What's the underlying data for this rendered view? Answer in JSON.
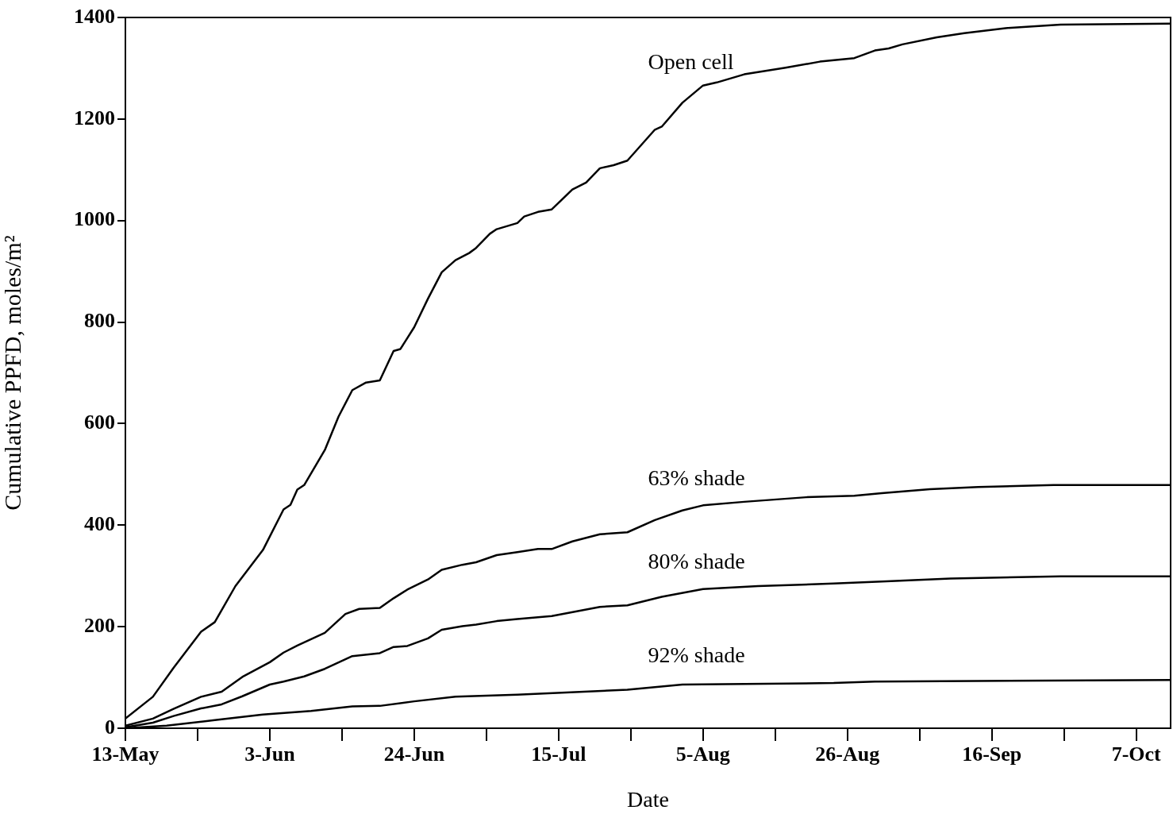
{
  "chart_data": {
    "type": "line",
    "xlabel": "Date",
    "ylabel": "Cumulative PPFD, moles/m²",
    "xlim": [
      "--05-13",
      "--10-12"
    ],
    "xticks": [
      {
        "value": "--05-13",
        "label": "13-May"
      },
      {
        "value": "--05-23T12:00",
        "label": null
      },
      {
        "value": "--06-03",
        "label": "3-Jun"
      },
      {
        "value": "--06-13T12:00",
        "label": null
      },
      {
        "value": "--06-24",
        "label": "24-Jun"
      },
      {
        "value": "--07-04T12:00",
        "label": null
      },
      {
        "value": "--07-15",
        "label": "15-Jul"
      },
      {
        "value": "--07-25T12:00",
        "label": null
      },
      {
        "value": "--08-05",
        "label": "5-Aug"
      },
      {
        "value": "--08-15T12:00",
        "label": null
      },
      {
        "value": "--08-26",
        "label": "26-Aug"
      },
      {
        "value": "--09-05T12:00",
        "label": null
      },
      {
        "value": "--09-16",
        "label": "16-Sep"
      },
      {
        "value": "--09-26T12:00",
        "label": null
      },
      {
        "value": "--10-07",
        "label": "7-Oct"
      }
    ],
    "ylim": [
      0,
      1400
    ],
    "yticks": [
      0,
      200,
      400,
      600,
      800,
      1000,
      1200,
      1400
    ],
    "series": [
      {
        "name": "Open cell",
        "color": "#000000",
        "x": [
          "--05-13",
          "--05-17",
          "--05-20",
          "--05-24",
          "--05-26",
          "--05-29",
          "--06-02",
          "--06-05",
          "--06-06",
          "--06-07",
          "--06-08",
          "--06-11",
          "--06-13",
          "--06-15",
          "--06-17",
          "--06-19",
          "--06-21",
          "--06-22",
          "--06-24",
          "--06-26",
          "--06-28",
          "--06-30",
          "--07-02",
          "--07-03",
          "--07-05",
          "--07-06",
          "--07-09",
          "--07-10",
          "--07-12",
          "--07-14",
          "--07-17",
          "--07-19",
          "--07-21",
          "--07-23",
          "--07-25",
          "--07-29",
          "--07-30",
          "--08-02",
          "--08-05",
          "--08-07",
          "--08-11",
          "--08-17",
          "--08-22",
          "--08-27",
          "--08-30",
          "--09-01",
          "--09-03",
          "--09-08",
          "--09-12",
          "--09-18",
          "--09-26",
          "--10-12"
        ],
        "values": [
          19,
          62,
          119,
          190,
          209,
          280,
          351,
          431,
          440,
          470,
          479,
          548,
          614,
          666,
          681,
          685,
          743,
          747,
          790,
          846,
          898,
          922,
          936,
          946,
          974,
          983,
          995,
          1008,
          1017,
          1022,
          1061,
          1075,
          1103,
          1109,
          1118,
          1179,
          1185,
          1232,
          1266,
          1272,
          1288,
          1301,
          1313,
          1320,
          1335,
          1339,
          1347,
          1361,
          1369,
          1379,
          1386,
          1388
        ]
      },
      {
        "name": "63% shade",
        "color": "#000000",
        "x": [
          "--05-13",
          "--05-17",
          "--05-20",
          "--05-24",
          "--05-27",
          "--05-30",
          "--06-03",
          "--06-05",
          "--06-07",
          "--06-11",
          "--06-14",
          "--06-16",
          "--06-19",
          "--06-21",
          "--06-23",
          "--06-26",
          "--06-28",
          "--07-01",
          "--07-03",
          "--07-06",
          "--07-09",
          "--07-12",
          "--07-14",
          "--07-17",
          "--07-21",
          "--07-25",
          "--07-29",
          "--08-02",
          "--08-05",
          "--08-11",
          "--08-20",
          "--08-27",
          "--08-31",
          "--09-07",
          "--09-14",
          "--09-25",
          "--10-12"
        ],
        "values": [
          5,
          19,
          38,
          62,
          72,
          101,
          130,
          149,
          163,
          188,
          225,
          235,
          237,
          256,
          273,
          293,
          312,
          322,
          327,
          341,
          347,
          353,
          353,
          368,
          382,
          386,
          410,
          429,
          439,
          446,
          455,
          458,
          463,
          471,
          475,
          479,
          479
        ]
      },
      {
        "name": "80% shade",
        "color": "#000000",
        "x": [
          "--05-13",
          "--05-17",
          "--05-20",
          "--05-24",
          "--05-27",
          "--05-30",
          "--06-03",
          "--06-05",
          "--06-08",
          "--06-11",
          "--06-15",
          "--06-19",
          "--06-21",
          "--06-23",
          "--06-26",
          "--06-28",
          "--07-01",
          "--07-03",
          "--07-06",
          "--07-09",
          "--07-14",
          "--07-21",
          "--07-25",
          "--07-30",
          "--08-05",
          "--08-13",
          "--08-24",
          "--08-31",
          "--09-10",
          "--09-26",
          "--10-12"
        ],
        "values": [
          2,
          11,
          24,
          39,
          47,
          63,
          86,
          92,
          102,
          117,
          142,
          148,
          160,
          162,
          177,
          194,
          201,
          204,
          211,
          215,
          221,
          239,
          242,
          259,
          274,
          280,
          285,
          289,
          295,
          299,
          299
        ]
      },
      {
        "name": "92% shade",
        "color": "#000000",
        "x": [
          "--05-13",
          "--05-19",
          "--05-26",
          "--06-02",
          "--06-09",
          "--06-15",
          "--06-19",
          "--06-24",
          "--06-30",
          "--07-09",
          "--07-25",
          "--08-02",
          "--08-24",
          "--08-30",
          "--10-12"
        ],
        "values": [
          0,
          5,
          16,
          27,
          34,
          43,
          44,
          53,
          62,
          66,
          76,
          86,
          89,
          92,
          95
        ]
      }
    ]
  }
}
